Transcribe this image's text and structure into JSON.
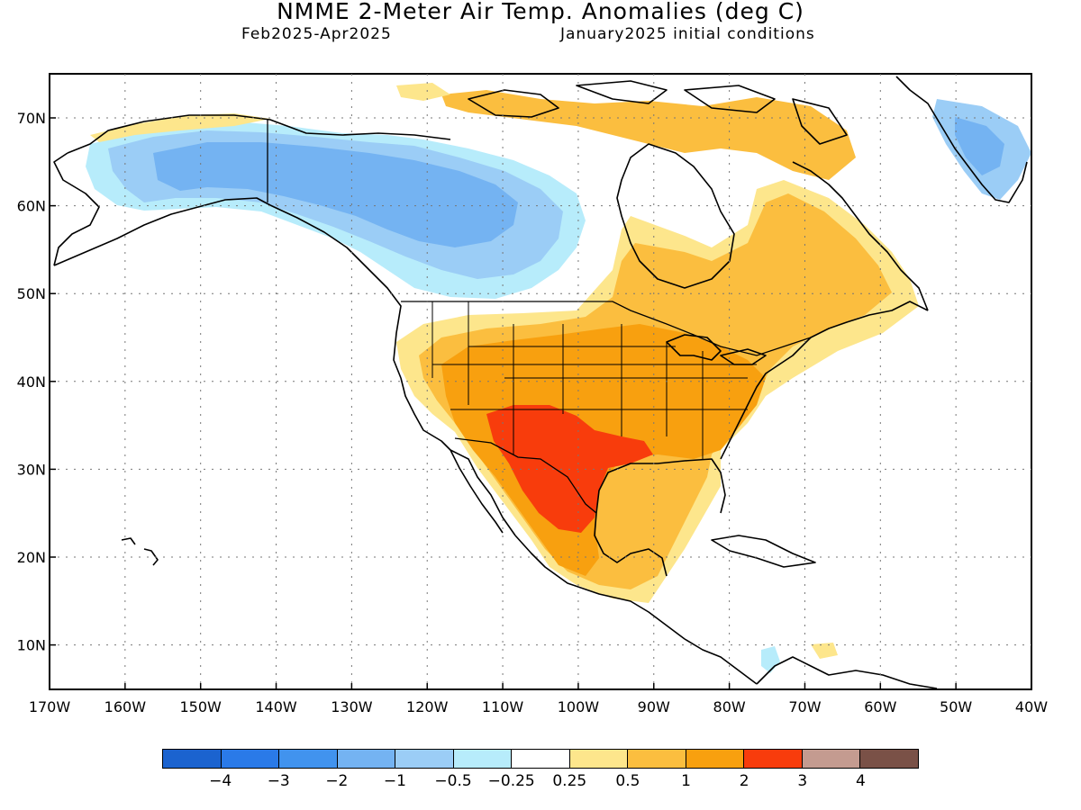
{
  "title": "NMME 2-Meter Air Temp. Anomalies (deg C)",
  "period": "Feb2025-Apr2025",
  "init": "January2025 initial conditions",
  "lat_labels": [
    "70N",
    "60N",
    "50N",
    "40N",
    "30N",
    "20N",
    "10N"
  ],
  "lon_labels": [
    "170W",
    "160W",
    "150W",
    "140W",
    "130W",
    "120W",
    "110W",
    "100W",
    "90W",
    "80W",
    "70W",
    "60W",
    "50W",
    "40W"
  ],
  "colorbar": {
    "colors": [
      "#1b63cf",
      "#2a7ae8",
      "#4193ee",
      "#74b3f2",
      "#9bcdf6",
      "#b7ecfb",
      "#ffffff",
      "#fde68c",
      "#fbbe3f",
      "#f8a00f",
      "#f83c0c",
      "#c49b90",
      "#7a5147"
    ],
    "labels": [
      "−4",
      "−3",
      "−2",
      "−1",
      "−0.5",
      "−0.25",
      "0.25",
      "0.5",
      "1",
      "2",
      "3",
      "4"
    ]
  },
  "map_colors": {
    "land_outline": "#000000",
    "cold_-1": "#74b3f2",
    "cold_-0.5": "#9bcdf6",
    "cold_-0.25": "#b7ecfb",
    "warm_0.25": "#fde68c",
    "warm_0.5": "#fbbe3f",
    "warm_1": "#f8a00f",
    "warm_2": "#f83c0c"
  }
}
